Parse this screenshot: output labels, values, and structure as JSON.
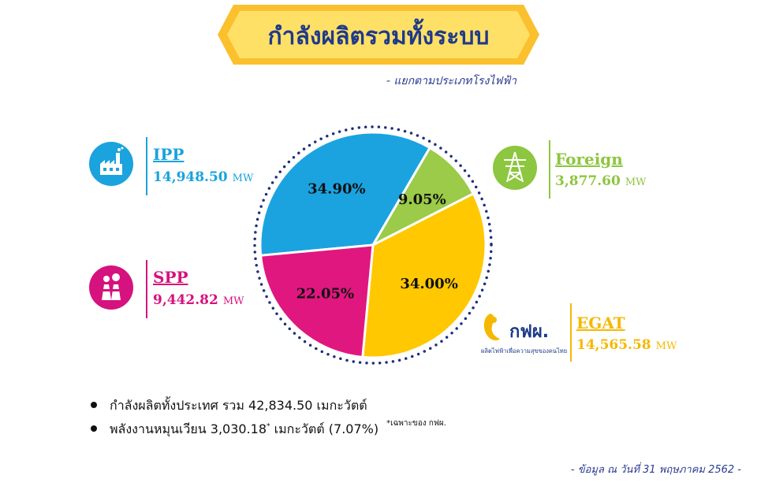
{
  "header": {
    "title": "กำลังผลิตรวมทั้งระบบ",
    "subtitle": "- แยกตามประเภทโรงไฟฟ้า"
  },
  "legend": {
    "ipp": {
      "name": "IPP",
      "value": "14,948.50",
      "unit": "MW",
      "icon": "factory-icon",
      "color": "#1aa3dd"
    },
    "spp": {
      "name": "SPP",
      "value": "9,442.82",
      "unit": "MW",
      "icon": "power-plant-icon",
      "color": "#d6127e"
    },
    "foreign": {
      "name": "Foreign",
      "value": "3,877.60",
      "unit": "MW",
      "icon": "power-tower-icon",
      "color": "#8dc63f"
    },
    "egat": {
      "name": "EGAT",
      "value": "14,565.58",
      "unit": "MW",
      "icon": "egat-logo",
      "color": "#f5b800",
      "logo_text": "กฟผ.",
      "logo_tagline": "ผลิตไฟฟ้าเพื่อความสุขของคนไทย"
    }
  },
  "chart_data": {
    "type": "pie",
    "slices": [
      {
        "name": "IPP",
        "value": 34.9,
        "label": "34.90%",
        "color": "#1ba3e0"
      },
      {
        "name": "Foreign",
        "value": 9.05,
        "label": "9.05%",
        "color": "#9bcb48"
      },
      {
        "name": "EGAT",
        "value": 34.0,
        "label": "34.00%",
        "color": "#ffc800"
      },
      {
        "name": "SPP",
        "value": 22.05,
        "label": "22.05%",
        "color": "#e0177f"
      }
    ]
  },
  "notes": {
    "total": "กำลังผลิตทั้งประเทศ รวม 42,834.50 เมกะวัตต์",
    "renewable_pre": "พลังงานหมุนเวียน 3,030.18",
    "renewable_sup": "*",
    "renewable_post": " เมกะวัตต์ (7.07%)",
    "renewable_footnote": "*เฉพาะของ กฟผ."
  },
  "footer": {
    "date_note": "- ข้อมูล ณ วันที่ 31 พฤษภาคม 2562 -"
  }
}
